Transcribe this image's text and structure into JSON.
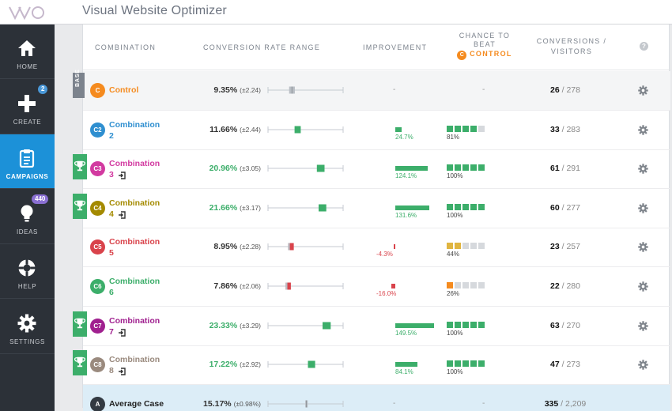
{
  "app": {
    "title": "Visual Website Optimizer"
  },
  "colors": {
    "green": "#3cae6a",
    "red": "#d9434b",
    "orange": "#f58b1f",
    "blue": "#1c91d8",
    "sidebar": "#2c3138",
    "gray": "#b9bec4",
    "yellow": "#e0b540"
  },
  "sidebar": {
    "items": [
      {
        "label": "HOME",
        "icon": "home-icon",
        "active": false,
        "badge": null
      },
      {
        "label": "CREATE",
        "icon": "plus-icon",
        "active": false,
        "badge": "2"
      },
      {
        "label": "CAMPAIGNS",
        "icon": "clipboard-icon",
        "active": true,
        "badge": null
      },
      {
        "label": "IDEAS",
        "icon": "lightbulb-icon",
        "active": false,
        "badge": "440"
      },
      {
        "label": "HELP",
        "icon": "lifebuoy-icon",
        "active": false,
        "badge": null
      },
      {
        "label": "SETTINGS",
        "icon": "gear-icon",
        "active": false,
        "badge": null
      }
    ]
  },
  "table": {
    "headers": {
      "combination": "COMBINATION",
      "range": "CONVERSION RATE RANGE",
      "improvement": "IMPROVEMENT",
      "chance_line1": "CHANCE TO",
      "chance_line2": "BEAT",
      "chance_control": "CONTROL",
      "chance_badge": "C",
      "conv_line1": "CONVERSIONS /",
      "conv_line2": "VISITORS",
      "help": "?"
    },
    "base_label": "BASE",
    "rows": [
      {
        "badge": "C",
        "name": "Control",
        "name2": "",
        "color": "#f58b1f",
        "rate": "9.35%",
        "pm": "(±2.24)",
        "range": [
          8.2,
          10.5
        ],
        "improvement": null,
        "improvement_label": "-",
        "chance": null,
        "chance_label": "-",
        "conversions": "26",
        "visitors": "278",
        "winner": false,
        "base": true,
        "login": false
      },
      {
        "badge": "C2",
        "name": "Combination",
        "name2": "2",
        "color": "#2f8fd0",
        "rate": "11.66%",
        "pm": "(±2.44)",
        "range": [
          10.4,
          12.9
        ],
        "improvement": 24.7,
        "improvement_label": "24.7%",
        "chance": 0.81,
        "chance_label": "81%",
        "conversions": "33",
        "visitors": "283",
        "winner": false,
        "base": false,
        "login": false
      },
      {
        "badge": "C3",
        "name": "Combination",
        "name2": "3",
        "color": "#d23aa0",
        "rate": "20.96%",
        "pm": "(±3.05)",
        "range": [
          19.4,
          22.5
        ],
        "improvement": 124.1,
        "improvement_label": "124.1%",
        "chance": 1.0,
        "chance_label": "100%",
        "conversions": "61",
        "visitors": "291",
        "winner": true,
        "base": false,
        "login": true
      },
      {
        "badge": "C4",
        "name": "Combination",
        "name2": "4",
        "color": "#a48a00",
        "rate": "21.66%",
        "pm": "(±3.17)",
        "range": [
          20.1,
          23.2
        ],
        "improvement": 131.6,
        "improvement_label": "131.6%",
        "chance": 1.0,
        "chance_label": "100%",
        "conversions": "60",
        "visitors": "277",
        "winner": true,
        "base": false,
        "login": true
      },
      {
        "badge": "C5",
        "name": "Combination",
        "name2": "5",
        "color": "#d9434b",
        "rate": "8.95%",
        "pm": "(±2.28)",
        "range": [
          7.8,
          10.1
        ],
        "improvement": -4.3,
        "improvement_label": "-4.3%",
        "chance": 0.44,
        "chance_label": "44%",
        "conversions": "23",
        "visitors": "257",
        "winner": false,
        "base": false,
        "login": false
      },
      {
        "badge": "C6",
        "name": "Combination",
        "name2": "6",
        "color": "#3cae6a",
        "rate": "7.86%",
        "pm": "(±2.06)",
        "range": [
          6.8,
          8.9
        ],
        "improvement": -16.0,
        "improvement_label": "-16.0%",
        "chance": 0.26,
        "chance_label": "26%",
        "conversions": "22",
        "visitors": "280",
        "winner": false,
        "base": false,
        "login": false
      },
      {
        "badge": "C7",
        "name": "Combination",
        "name2": "7",
        "color": "#a0208f",
        "rate": "23.33%",
        "pm": "(±3.29)",
        "range": [
          21.7,
          25.0
        ],
        "improvement": 149.5,
        "improvement_label": "149.5%",
        "chance": 1.0,
        "chance_label": "100%",
        "conversions": "63",
        "visitors": "270",
        "winner": true,
        "base": false,
        "login": true
      },
      {
        "badge": "C8",
        "name": "Combination",
        "name2": "8",
        "color": "#9a8a7e",
        "rate": "17.22%",
        "pm": "(±2.92)",
        "range": [
          15.8,
          18.7
        ],
        "improvement": 84.1,
        "improvement_label": "84.1%",
        "chance": 1.0,
        "chance_label": "100%",
        "conversions": "47",
        "visitors": "273",
        "winner": true,
        "base": false,
        "login": true
      }
    ],
    "average": {
      "badge": "A",
      "name": "Average Case",
      "rate": "15.17%",
      "pm": "(±0.98%)",
      "range": [
        14.7,
        15.7
      ],
      "improvement_label": "-",
      "chance_label": "-",
      "conversions": "335",
      "visitors": "2,209"
    }
  }
}
